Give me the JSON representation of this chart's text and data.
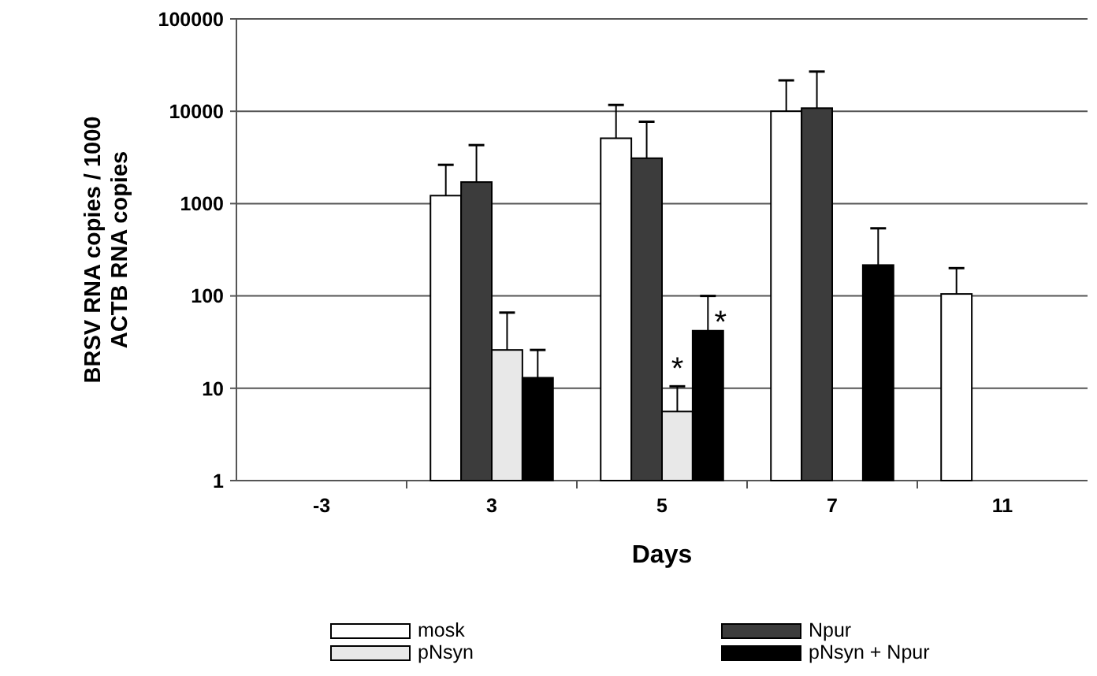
{
  "chart_data": {
    "type": "bar",
    "xlabel": "Days",
    "ylabel": "BRSV RNA copies / 1000\nACTB RNA copies",
    "categories": [
      "-3",
      "3",
      "5",
      "7",
      "11"
    ],
    "series": [
      {
        "name": "mosk",
        "color": "#ffffff",
        "values": [
          null,
          1220,
          5100,
          10000,
          105
        ],
        "errors": [
          null,
          [
            1220,
            2630
          ],
          [
            5100,
            11700
          ],
          [
            10000,
            21600
          ],
          [
            105,
            200
          ]
        ]
      },
      {
        "name": "Npur",
        "color": "#3c3c3c",
        "values": [
          null,
          1710,
          3100,
          10800,
          null
        ],
        "errors": [
          null,
          [
            1710,
            4300
          ],
          [
            3100,
            7700
          ],
          [
            10800,
            26900
          ],
          null
        ]
      },
      {
        "name": "pNsyn",
        "color": "#e8e8e8",
        "values": [
          null,
          26,
          5.6,
          null,
          null
        ],
        "errors": [
          null,
          [
            26,
            66
          ],
          [
            5.6,
            10.5
          ],
          null,
          null
        ]
      },
      {
        "name": "pNsyn + Npur",
        "color": "#000000",
        "values": [
          null,
          13,
          42,
          216,
          null
        ],
        "errors": [
          null,
          [
            13,
            26
          ],
          [
            42,
            100
          ],
          [
            216,
            540
          ],
          null
        ]
      }
    ],
    "annotations": [
      {
        "text": "*",
        "x": "5",
        "y": 22
      },
      {
        "text": "*",
        "x": "5",
        "y": 70
      }
    ],
    "ylim": [
      1,
      100000
    ],
    "yticks": [
      1,
      10,
      100,
      1000,
      10000,
      100000
    ],
    "log": "y",
    "grid": "y",
    "legend": "bottom"
  }
}
